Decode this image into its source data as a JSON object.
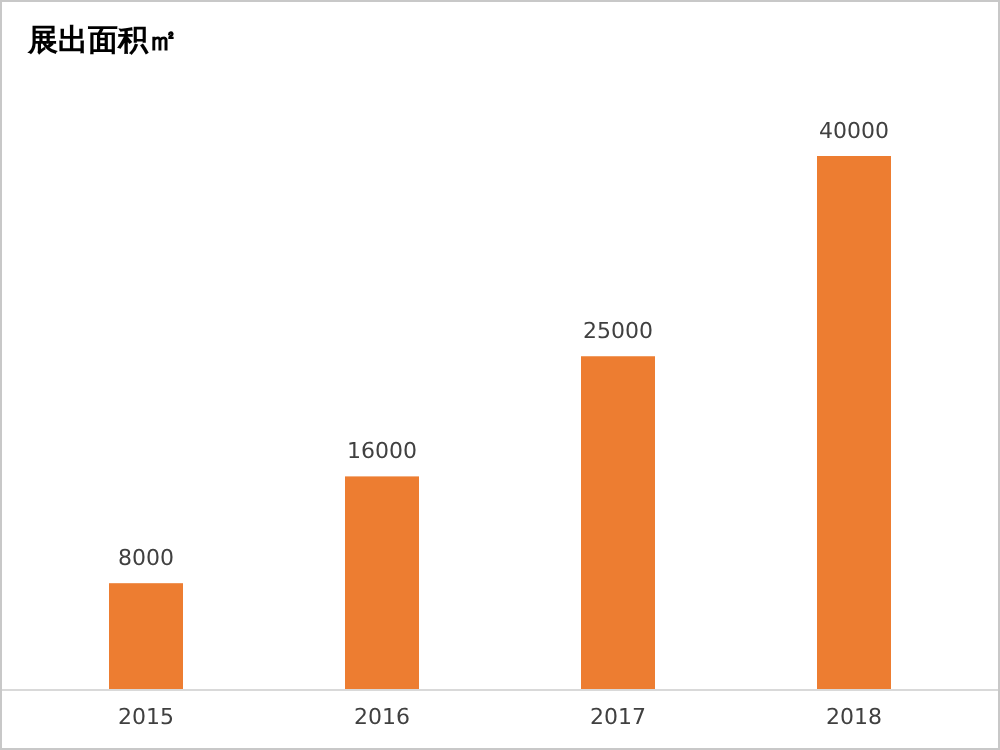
{
  "chart_data": {
    "type": "bar",
    "title": "展出面积㎡",
    "categories": [
      "2015",
      "2016",
      "2017",
      "2018"
    ],
    "values": [
      8000,
      16000,
      25000,
      40000
    ],
    "color": "#ed7d31",
    "data_labels": true
  }
}
